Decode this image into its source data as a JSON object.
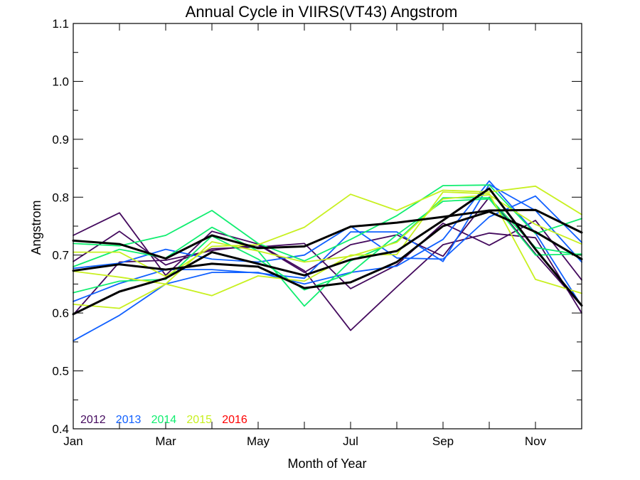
{
  "chart_data": {
    "type": "line",
    "title": "Annual Cycle in VIIRS(VT43) Angstrom",
    "xlabel": "Month of Year",
    "ylabel": "Angstrom",
    "xlim": [
      1,
      12
    ],
    "ylim": [
      0.4,
      1.1
    ],
    "x_ticks": [
      {
        "x": 1,
        "label": "Jan"
      },
      {
        "x": 3,
        "label": "Mar"
      },
      {
        "x": 5,
        "label": "May"
      },
      {
        "x": 7,
        "label": "Jul"
      },
      {
        "x": 9,
        "label": "Sep"
      },
      {
        "x": 11,
        "label": "Nov"
      }
    ],
    "y_ticks": [
      {
        "y": 0.4,
        "label": "0.4"
      },
      {
        "y": 0.5,
        "label": "0.5"
      },
      {
        "y": 0.6,
        "label": "0.6"
      },
      {
        "y": 0.7,
        "label": "0.7"
      },
      {
        "y": 0.8,
        "label": "0.8"
      },
      {
        "y": 0.9,
        "label": "0.9"
      },
      {
        "y": 1.0,
        "label": "1.0"
      },
      {
        "y": 1.1,
        "label": "1.1"
      }
    ],
    "legend": {
      "placement": "bottom-left",
      "entries": [
        {
          "label": "2012",
          "color": "#440a5e"
        },
        {
          "label": "2013",
          "color": "#1060ff"
        },
        {
          "label": "2014",
          "color": "#10ee70"
        },
        {
          "label": "2015",
          "color": "#c8f020"
        },
        {
          "label": "2016",
          "color": "#ff0000"
        }
      ]
    },
    "x": [
      1,
      2,
      3,
      4,
      5,
      6,
      7,
      8,
      9,
      10,
      11,
      12
    ],
    "series": [
      {
        "name": "2012",
        "color": "#440a5e",
        "values": [
          0.734,
          0.773,
          0.665,
          0.741,
          0.719,
          0.673,
          0.57,
          0.645,
          0.718,
          0.738,
          0.73,
          0.6
        ]
      },
      {
        "name": "2012",
        "color": "#440a5e",
        "values": [
          0.689,
          0.741,
          0.683,
          0.711,
          0.714,
          0.72,
          0.642,
          0.683,
          0.755,
          0.717,
          0.76,
          0.657
        ]
      },
      {
        "name": "2012",
        "color": "#440a5e",
        "values": [
          0.597,
          0.688,
          0.691,
          0.708,
          0.718,
          0.67,
          0.718,
          0.735,
          0.698,
          0.8,
          0.702,
          0.612
        ]
      },
      {
        "name": "2013",
        "color": "#1060ff",
        "values": [
          0.552,
          0.596,
          0.65,
          0.67,
          0.67,
          0.65,
          0.67,
          0.681,
          0.727,
          0.828,
          0.738,
          0.612
        ]
      },
      {
        "name": "2013",
        "color": "#1060ff",
        "values": [
          0.62,
          0.651,
          0.675,
          0.675,
          0.669,
          0.66,
          0.74,
          0.74,
          0.689,
          0.822,
          0.777,
          0.688
        ]
      },
      {
        "name": "2013",
        "color": "#1060ff",
        "values": [
          0.677,
          0.686,
          0.71,
          0.693,
          0.688,
          0.7,
          0.75,
          0.695,
          0.693,
          0.766,
          0.802,
          0.722
        ]
      },
      {
        "name": "2014",
        "color": "#10ee70",
        "values": [
          0.72,
          0.716,
          0.734,
          0.777,
          0.72,
          0.69,
          0.727,
          0.768,
          0.82,
          0.821,
          0.737,
          0.763
        ]
      },
      {
        "name": "2014",
        "color": "#10ee70",
        "values": [
          0.68,
          0.71,
          0.695,
          0.748,
          0.707,
          0.612,
          0.69,
          0.724,
          0.799,
          0.799,
          0.713,
          0.7
        ]
      },
      {
        "name": "2014",
        "color": "#10ee70",
        "values": [
          0.635,
          0.655,
          0.658,
          0.733,
          0.693,
          0.64,
          0.669,
          0.735,
          0.793,
          0.797,
          0.7,
          0.702
        ]
      },
      {
        "name": "2015",
        "color": "#c8f020",
        "values": [
          0.705,
          0.705,
          0.663,
          0.715,
          0.718,
          0.748,
          0.805,
          0.777,
          0.812,
          0.809,
          0.819,
          0.77
        ]
      },
      {
        "name": "2015",
        "color": "#c8f020",
        "values": [
          0.615,
          0.608,
          0.65,
          0.63,
          0.664,
          0.655,
          0.7,
          0.701,
          0.809,
          0.806,
          0.658,
          0.634
        ]
      },
      {
        "name": "2015",
        "color": "#c8f020",
        "values": [
          0.672,
          0.662,
          0.65,
          0.723,
          0.707,
          0.688,
          0.698,
          0.722,
          0.797,
          0.804,
          0.753,
          0.719
        ]
      },
      {
        "name": "",
        "color": "#000000",
        "emphasis": true,
        "values": [
          0.725,
          0.719,
          0.694,
          0.734,
          0.712,
          0.715,
          0.749,
          0.756,
          0.766,
          0.777,
          0.778,
          0.739
        ]
      },
      {
        "name": "",
        "color": "#000000",
        "emphasis": true,
        "values": [
          0.673,
          0.684,
          0.675,
          0.685,
          0.68,
          0.643,
          0.653,
          0.688,
          0.75,
          0.775,
          0.74,
          0.693
        ]
      },
      {
        "name": "",
        "color": "#000000",
        "emphasis": true,
        "values": [
          0.598,
          0.637,
          0.66,
          0.705,
          0.685,
          0.665,
          0.692,
          0.707,
          0.76,
          0.815,
          0.71,
          0.613
        ]
      }
    ]
  }
}
